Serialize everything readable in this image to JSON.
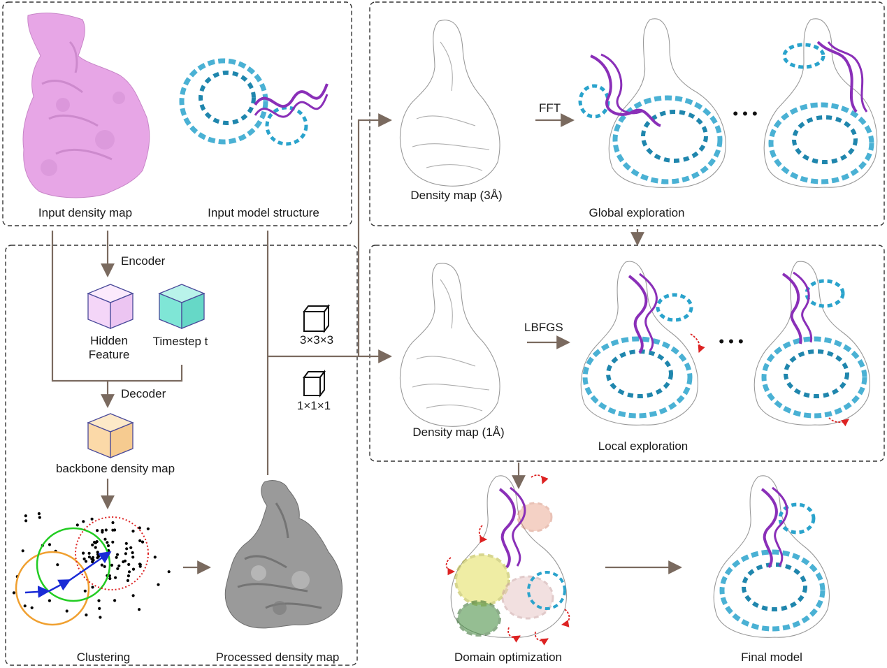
{
  "panels": {
    "inputs": {
      "density_map_label": "Input density map",
      "model_structure_label": "Input model structure"
    },
    "preprocessing": {
      "encoder_label": "Encoder",
      "hidden_feature_label": "Hidden\nFeature",
      "timestep_label": "Timestep t",
      "decoder_label": "Decoder",
      "backbone_label": "backbone density map",
      "clustering_label": "Clustering",
      "processed_label": "Processed density map"
    },
    "global": {
      "map_label": "Density map (3Å)",
      "method_label": "FFT",
      "title": "Global exploration",
      "ellipsis": "• • •"
    },
    "kernels": {
      "large_label": "3×3×3",
      "small_label": "1×1×1"
    },
    "local": {
      "map_label": "Density map (1Å)",
      "method_label": "LBFGS",
      "title": "Local exploration",
      "ellipsis": "• • •"
    },
    "domain_label": "Domain optimization",
    "final_label": "Final model"
  },
  "colors": {
    "arrow": "#7a6a5f",
    "panel_border": "#333333",
    "input_density": "#e7a6e6",
    "protein": "#2aa3cc",
    "rna": "#8a2fb8",
    "processed_density": "#9a9a9a",
    "hidden_cube": "#f4d6f8",
    "timestep_cube": "#7fe6d6",
    "backbone_cube": "#fbd9a8",
    "cube_edge": "#4a4a9a",
    "cluster_orange": "#f0a030",
    "cluster_green": "#22cc22",
    "cluster_red": "#dd2222",
    "cluster_path": "#1a2bd6",
    "domain_yellow": "#e2e05a",
    "domain_green": "#3f8a3a",
    "domain_salmon": "#e89a80",
    "rotation_marker": "#dd2222"
  },
  "icons": {
    "cube_icon": "cube-outline",
    "rotation_icon": "curved-dashed-arrow"
  }
}
